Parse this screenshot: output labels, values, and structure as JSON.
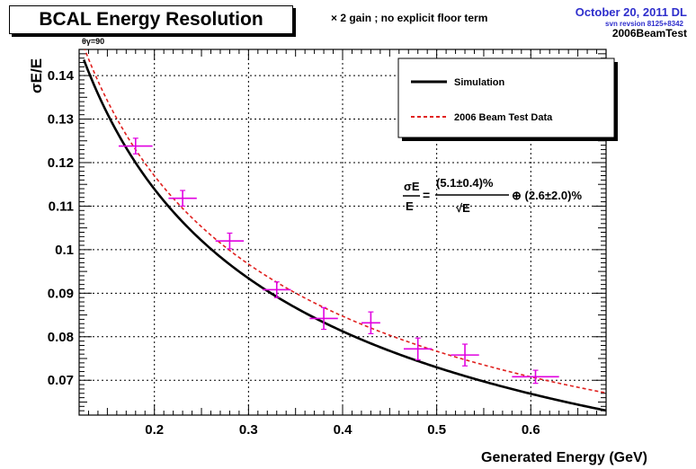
{
  "header": {
    "title": "BCAL Energy Resolution",
    "note": "× 2 gain  ; no explicit floor term",
    "date": "October 20, 2011 DL",
    "svn": "svn revsion 8125+8342",
    "tag": "2006BeamTest",
    "theta_label": "θγ=90"
  },
  "colors": {
    "simulation": "#000000",
    "beam_test": "#e0201e",
    "data_points": "#e000e0",
    "header_blue": "#2e2ecc"
  },
  "chart_data": {
    "type": "line",
    "title": "BCAL Energy Resolution",
    "xlabel": "Generated Energy (GeV)",
    "ylabel": "σE/E",
    "xlim": [
      0.12,
      0.68
    ],
    "ylim": [
      0.062,
      0.146
    ],
    "x_ticks": [
      "0.2",
      "0.3",
      "0.4",
      "0.5",
      "0.6"
    ],
    "y_ticks": [
      "0.07",
      "0.08",
      "0.09",
      "0.1",
      "0.11",
      "0.12",
      "0.13",
      "0.14"
    ],
    "grid": true,
    "legend_position": "top-right",
    "series": [
      {
        "name": "Simulation",
        "style": "solid",
        "stochastic": 0.0505,
        "constant": 0.015
      },
      {
        "name": "2006 Beam Test Data",
        "style": "dashed",
        "stochastic": 0.051,
        "constant": 0.026
      }
    ],
    "points": [
      {
        "x": 0.18,
        "y": 0.1238,
        "xerr": 0.018,
        "yerr": 0.0018
      },
      {
        "x": 0.23,
        "y": 0.1118,
        "xerr": 0.015,
        "yerr": 0.0018
      },
      {
        "x": 0.28,
        "y": 0.102,
        "xerr": 0.015,
        "yerr": 0.0018
      },
      {
        "x": 0.33,
        "y": 0.0908,
        "xerr": 0.015,
        "yerr": 0.0018
      },
      {
        "x": 0.38,
        "y": 0.0842,
        "xerr": 0.015,
        "yerr": 0.0025
      },
      {
        "x": 0.43,
        "y": 0.0832,
        "xerr": 0.01,
        "yerr": 0.0025
      },
      {
        "x": 0.48,
        "y": 0.0772,
        "xerr": 0.015,
        "yerr": 0.0025
      },
      {
        "x": 0.53,
        "y": 0.0758,
        "xerr": 0.015,
        "yerr": 0.0025
      },
      {
        "x": 0.605,
        "y": 0.0708,
        "xerr": 0.025,
        "yerr": 0.0015
      }
    ],
    "formula": {
      "lhs_num": "σE",
      "lhs_den": "E",
      "num": "(5.1±0.4)%",
      "den": "√E",
      "rest": "⊕ (2.6±2.0)%"
    }
  }
}
